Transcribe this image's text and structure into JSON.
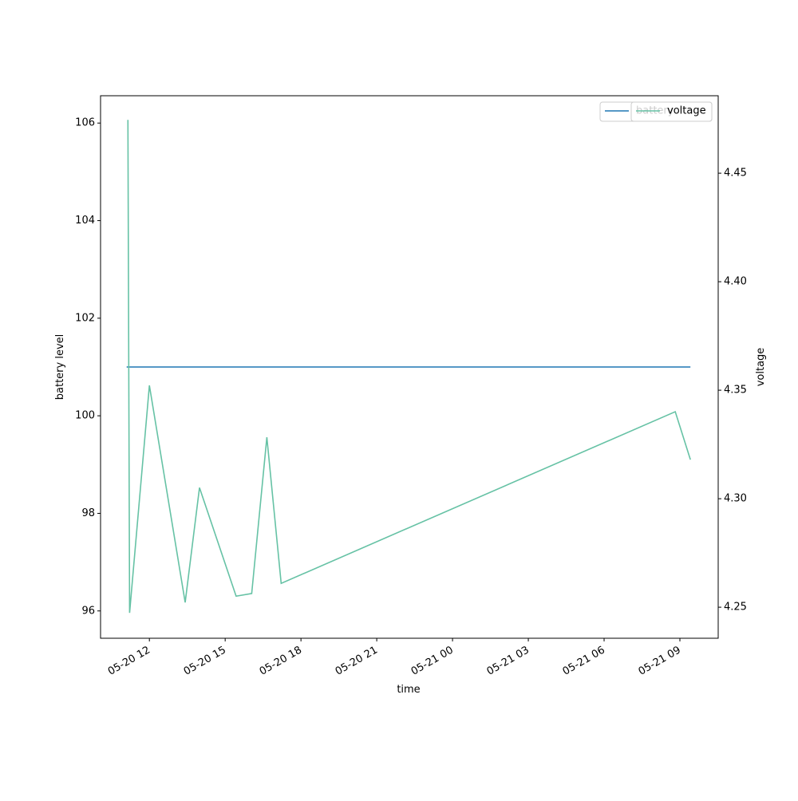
{
  "chart_data": {
    "type": "line",
    "x_label": "time",
    "y_label": "battery level",
    "y2_label": "voltage",
    "xlim": [
      "05-20 10:04",
      "05-21 10:31"
    ],
    "xticks": [
      {
        "value": "05-20 12:00",
        "label": "05-20 12"
      },
      {
        "value": "05-20 15:00",
        "label": "05-20 15"
      },
      {
        "value": "05-20 18:00",
        "label": "05-20 18"
      },
      {
        "value": "05-20 21:00",
        "label": "05-20 21"
      },
      {
        "value": "05-21 00:00",
        "label": "05-21 00"
      },
      {
        "value": "05-21 03:00",
        "label": "05-21 03"
      },
      {
        "value": "05-21 06:00",
        "label": "05-21 06"
      },
      {
        "value": "05-21 09:00",
        "label": "05-21 09"
      }
    ],
    "ylim": [
      95.44,
      106.56
    ],
    "yticks": [
      96,
      98,
      100,
      102,
      104,
      106
    ],
    "y2lim": [
      4.2357,
      4.4857
    ],
    "y2ticks": [
      4.25,
      {
        "value": 4.3,
        "label": "4.30"
      },
      4.35,
      {
        "value": 4.4,
        "label": "4.40"
      },
      4.45
    ],
    "series": [
      {
        "name": "battery",
        "color": "#1f77b4",
        "x": [
          "05-20 11:06",
          "05-21 09:25"
        ],
        "values": [
          101,
          101
        ]
      },
      {
        "name": "voltage",
        "color": "#66c2a5",
        "axis": "y2",
        "x": [
          "05-20 11:09",
          "05-20 11:13",
          "05-20 12:00",
          "05-20 13:25",
          "05-20 13:59",
          "05-20 15:26",
          "05-20 16:03",
          "05-20 16:39",
          "05-20 17:13",
          "05-21 08:49",
          "05-21 09:25"
        ],
        "values": [
          4.4746,
          4.2474,
          4.3522,
          4.2522,
          4.3051,
          4.2551,
          4.2563,
          4.3283,
          4.261,
          4.3401,
          4.318
        ]
      }
    ]
  }
}
